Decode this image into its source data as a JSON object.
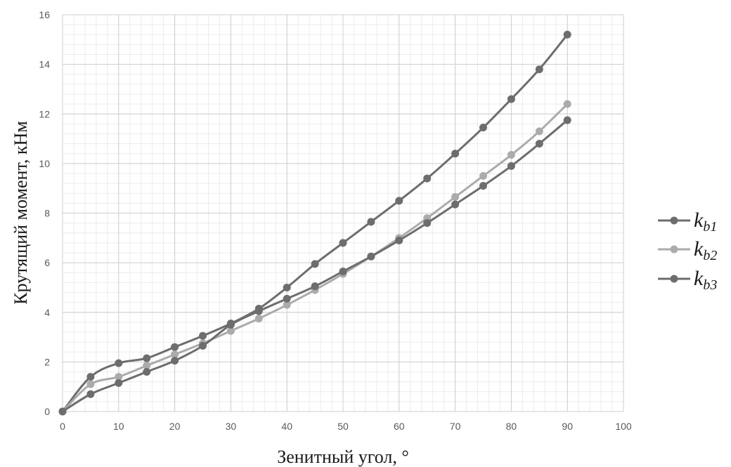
{
  "chart_data": {
    "type": "line",
    "title": "",
    "xlabel": "Зенитный угол, °",
    "ylabel": "Крутящий момент, кНм",
    "xlim": [
      0,
      100
    ],
    "ylim": [
      0,
      16
    ],
    "xticks": [
      0,
      10,
      20,
      30,
      40,
      50,
      60,
      70,
      80,
      90,
      100
    ],
    "yticks": [
      0,
      2,
      4,
      6,
      8,
      10,
      12,
      14,
      16
    ],
    "grid": true,
    "legend": "right",
    "x": [
      0,
      5,
      10,
      15,
      20,
      25,
      30,
      35,
      40,
      45,
      50,
      55,
      60,
      65,
      70,
      75,
      80,
      85,
      90
    ],
    "series": [
      {
        "name": "k_b1",
        "label_main": "k",
        "label_sub": "b1",
        "color": "#6d6d6d",
        "values": [
          0,
          1.4,
          1.95,
          2.15,
          2.6,
          3.05,
          3.55,
          4.15,
          5.0,
          5.95,
          6.8,
          7.65,
          8.5,
          9.4,
          10.4,
          11.45,
          12.6,
          13.8,
          15.2
        ]
      },
      {
        "name": "k_b2",
        "label_main": "k",
        "label_sub": "b2",
        "color": "#ababab",
        "values": [
          0,
          1.1,
          1.4,
          1.85,
          2.3,
          2.75,
          3.25,
          3.75,
          4.3,
          4.9,
          5.55,
          6.25,
          7.0,
          7.8,
          8.65,
          9.5,
          10.35,
          11.3,
          12.4
        ]
      },
      {
        "name": "k_b3",
        "label_main": "k",
        "label_sub": "b3",
        "color": "#6d6d6d",
        "values": [
          0,
          0.7,
          1.15,
          1.6,
          2.05,
          2.65,
          3.5,
          4.05,
          4.55,
          5.05,
          5.65,
          6.25,
          6.9,
          7.6,
          8.35,
          9.1,
          9.9,
          10.8,
          11.75
        ]
      }
    ]
  }
}
